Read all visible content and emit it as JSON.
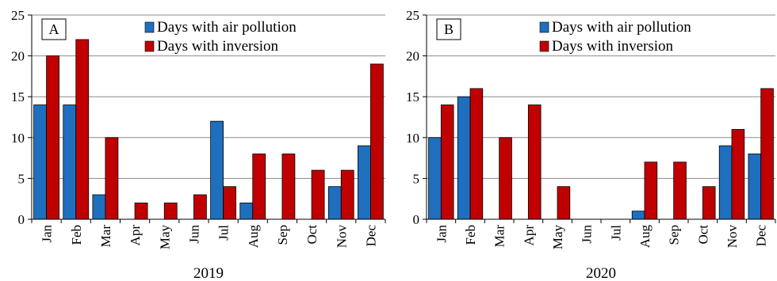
{
  "chart_data": [
    {
      "type": "bar",
      "panel_label": "A",
      "xlabel": "2019",
      "ylabel": "",
      "ylim": [
        0,
        25
      ],
      "yticks": [
        0,
        5,
        10,
        15,
        20,
        25
      ],
      "grid": "horizontal",
      "legend_position": "top-right",
      "categories": [
        "Jan",
        "Feb",
        "Mar",
        "Apr",
        "May",
        "Jun",
        "Jul",
        "Aug",
        "Sep",
        "Oct",
        "Nov",
        "Dec"
      ],
      "series": [
        {
          "name": "Days with air pollution",
          "color": "#1f6fbf",
          "values": [
            14,
            14,
            3,
            0,
            0,
            0,
            12,
            2,
            0,
            0,
            4,
            9
          ]
        },
        {
          "name": "Days with inversion",
          "color": "#c00000",
          "values": [
            20,
            22,
            10,
            2,
            2,
            3,
            4,
            8,
            8,
            6,
            6,
            19
          ]
        }
      ]
    },
    {
      "type": "bar",
      "panel_label": "B",
      "xlabel": "2020",
      "ylabel": "",
      "ylim": [
        0,
        25
      ],
      "yticks": [
        0,
        5,
        10,
        15,
        20,
        25
      ],
      "grid": "horizontal",
      "legend_position": "top-right",
      "categories": [
        "Jan",
        "Feb",
        "Mar",
        "Apr",
        "May",
        "Jun",
        "Jul",
        "Aug",
        "Sep",
        "Oct",
        "Nov",
        "Dec"
      ],
      "series": [
        {
          "name": "Days with air pollution",
          "color": "#1f6fbf",
          "values": [
            10,
            15,
            0,
            0,
            0,
            0,
            0,
            1,
            0,
            0,
            9,
            8
          ]
        },
        {
          "name": "Days with inversion",
          "color": "#c00000",
          "values": [
            14,
            16,
            10,
            14,
            4,
            0,
            0,
            7,
            7,
            4,
            11,
            16
          ]
        }
      ]
    }
  ]
}
